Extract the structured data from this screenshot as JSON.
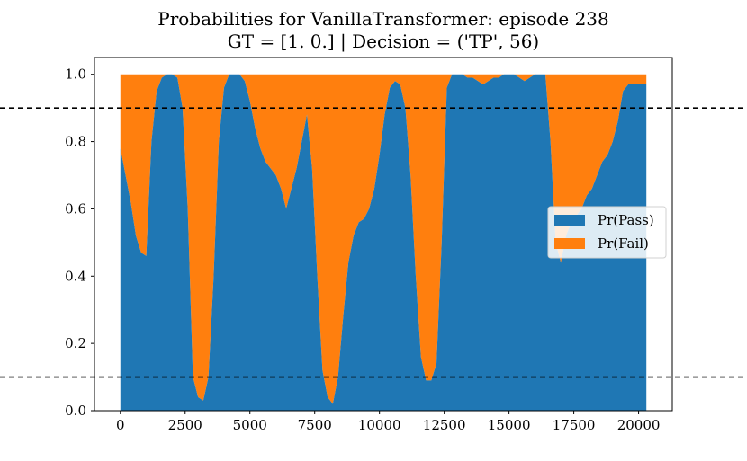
{
  "figure": {
    "title_line1": "Probabilities for VanillaTransformer: episode 238",
    "title_line2": "GT = [1. 0.] | Decision = ('TP', 56)"
  },
  "chart_data": {
    "type": "area",
    "stacked": true,
    "title": "Probabilities for VanillaTransformer: episode 238\nGT = [1. 0.] | Decision = ('TP', 56)",
    "xlabel": "",
    "ylabel": "",
    "xlim": [
      -1000,
      21300
    ],
    "ylim": [
      0.0,
      1.05
    ],
    "xticks": [
      0,
      2500,
      5000,
      7500,
      10000,
      12500,
      15000,
      17500,
      20000
    ],
    "yticks": [
      0.0,
      0.2,
      0.4,
      0.6,
      0.8,
      1.0
    ],
    "xtick_labels": [
      "0",
      "2500",
      "5000",
      "7500",
      "10000",
      "12500",
      "15000",
      "17500",
      "20000"
    ],
    "ytick_labels": [
      "0.0",
      "0.2",
      "0.4",
      "0.6",
      "0.8",
      "1.0"
    ],
    "grid": false,
    "legend_position": "center-right",
    "threshold_lines": [
      0.9,
      0.1
    ],
    "threshold_style": "dashed-black",
    "x": [
      0,
      200,
      400,
      600,
      800,
      1000,
      1200,
      1400,
      1600,
      1800,
      2000,
      2200,
      2400,
      2600,
      2800,
      3000,
      3200,
      3400,
      3600,
      3800,
      4000,
      4200,
      4400,
      4600,
      4800,
      5000,
      5200,
      5400,
      5600,
      5800,
      6000,
      6200,
      6400,
      6600,
      6800,
      7000,
      7200,
      7400,
      7600,
      7800,
      8000,
      8200,
      8400,
      8600,
      8800,
      9000,
      9200,
      9400,
      9600,
      9800,
      10000,
      10200,
      10400,
      10600,
      10800,
      11000,
      11200,
      11400,
      11600,
      11800,
      12000,
      12200,
      12400,
      12600,
      12800,
      13000,
      13200,
      13400,
      13600,
      13800,
      14000,
      14200,
      14400,
      14600,
      14800,
      15000,
      15200,
      15400,
      15600,
      15800,
      16000,
      16200,
      16400,
      16600,
      16800,
      17000,
      17200,
      17400,
      17600,
      17800,
      18000,
      18200,
      18400,
      18600,
      18800,
      19000,
      19200,
      19400,
      19600,
      19800,
      20000,
      20300
    ],
    "series": [
      {
        "name": "Pr(Pass)",
        "color": "#1f77b4",
        "values": [
          0.78,
          0.7,
          0.62,
          0.52,
          0.47,
          0.46,
          0.8,
          0.95,
          0.99,
          1.0,
          1.0,
          0.99,
          0.9,
          0.6,
          0.1,
          0.04,
          0.03,
          0.1,
          0.4,
          0.8,
          0.96,
          1.0,
          1.0,
          1.0,
          0.98,
          0.92,
          0.84,
          0.78,
          0.74,
          0.72,
          0.7,
          0.66,
          0.6,
          0.66,
          0.72,
          0.8,
          0.88,
          0.72,
          0.4,
          0.12,
          0.04,
          0.02,
          0.1,
          0.28,
          0.44,
          0.52,
          0.56,
          0.57,
          0.6,
          0.66,
          0.76,
          0.88,
          0.96,
          0.98,
          0.97,
          0.9,
          0.7,
          0.4,
          0.16,
          0.09,
          0.09,
          0.14,
          0.5,
          0.96,
          1.0,
          1.0,
          1.0,
          0.99,
          0.99,
          0.98,
          0.97,
          0.98,
          0.99,
          0.99,
          1.0,
          1.0,
          1.0,
          0.99,
          0.98,
          0.99,
          1.0,
          1.0,
          1.0,
          0.8,
          0.5,
          0.44,
          0.52,
          0.56,
          0.58,
          0.6,
          0.64,
          0.66,
          0.7,
          0.74,
          0.76,
          0.8,
          0.86,
          0.95,
          0.97,
          0.97,
          0.97,
          0.97
        ]
      },
      {
        "name": "Pr(Fail)",
        "color": "#ff7f0e",
        "values": "1 - Pr(Pass)"
      }
    ]
  }
}
